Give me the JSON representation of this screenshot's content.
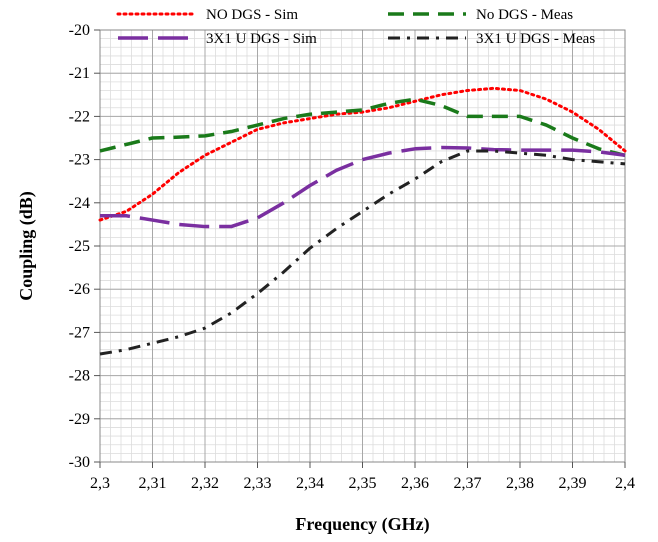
{
  "chart_data": {
    "type": "line",
    "title": "",
    "xlabel": "Frequency (GHz)",
    "ylabel": "Coupling (dB)",
    "xlim": [
      2.3,
      2.4
    ],
    "ylim": [
      -30,
      -20
    ],
    "x_ticks": [
      "2,3",
      "2,31",
      "2,32",
      "2,33",
      "2,34",
      "2,35",
      "2,36",
      "2,37",
      "2,38",
      "2,39",
      "2,4"
    ],
    "y_ticks": [
      "-20",
      "-21",
      "-22",
      "-23",
      "-24",
      "-25",
      "-26",
      "-27",
      "-28",
      "-29",
      "-30"
    ],
    "grid": true,
    "legend_position": "top",
    "series": [
      {
        "name": "NO DGS - Sim",
        "color": "#ff0000",
        "style": "dotted",
        "points": [
          [
            2.3,
            -24.4
          ],
          [
            2.305,
            -24.2
          ],
          [
            2.31,
            -23.8
          ],
          [
            2.315,
            -23.3
          ],
          [
            2.32,
            -22.9
          ],
          [
            2.325,
            -22.6
          ],
          [
            2.33,
            -22.3
          ],
          [
            2.335,
            -22.15
          ],
          [
            2.34,
            -22.05
          ],
          [
            2.345,
            -21.95
          ],
          [
            2.35,
            -21.9
          ],
          [
            2.355,
            -21.8
          ],
          [
            2.36,
            -21.65
          ],
          [
            2.365,
            -21.5
          ],
          [
            2.37,
            -21.4
          ],
          [
            2.375,
            -21.35
          ],
          [
            2.38,
            -21.4
          ],
          [
            2.385,
            -21.6
          ],
          [
            2.39,
            -21.9
          ],
          [
            2.395,
            -22.3
          ],
          [
            2.4,
            -22.8
          ]
        ]
      },
      {
        "name": "No DGS - Meas",
        "color": "#1a7a1a",
        "style": "dashed",
        "points": [
          [
            2.3,
            -22.8
          ],
          [
            2.305,
            -22.65
          ],
          [
            2.31,
            -22.5
          ],
          [
            2.315,
            -22.48
          ],
          [
            2.32,
            -22.45
          ],
          [
            2.325,
            -22.35
          ],
          [
            2.33,
            -22.2
          ],
          [
            2.335,
            -22.05
          ],
          [
            2.34,
            -21.95
          ],
          [
            2.345,
            -21.9
          ],
          [
            2.35,
            -21.85
          ],
          [
            2.355,
            -21.7
          ],
          [
            2.36,
            -21.6
          ],
          [
            2.365,
            -21.75
          ],
          [
            2.37,
            -22.0
          ],
          [
            2.375,
            -22.0
          ],
          [
            2.38,
            -22.0
          ],
          [
            2.385,
            -22.2
          ],
          [
            2.39,
            -22.5
          ],
          [
            2.395,
            -22.75
          ],
          [
            2.4,
            -22.9
          ]
        ]
      },
      {
        "name": "3X1 U DGS - Sim",
        "color": "#7a2fa0",
        "style": "longdash",
        "points": [
          [
            2.3,
            -24.3
          ],
          [
            2.305,
            -24.3
          ],
          [
            2.31,
            -24.4
          ],
          [
            2.315,
            -24.5
          ],
          [
            2.32,
            -24.55
          ],
          [
            2.325,
            -24.55
          ],
          [
            2.33,
            -24.35
          ],
          [
            2.335,
            -24.0
          ],
          [
            2.34,
            -23.6
          ],
          [
            2.345,
            -23.25
          ],
          [
            2.35,
            -23.0
          ],
          [
            2.355,
            -22.85
          ],
          [
            2.36,
            -22.75
          ],
          [
            2.365,
            -22.72
          ],
          [
            2.37,
            -22.73
          ],
          [
            2.375,
            -22.77
          ],
          [
            2.38,
            -22.78
          ],
          [
            2.385,
            -22.78
          ],
          [
            2.39,
            -22.78
          ],
          [
            2.395,
            -22.82
          ],
          [
            2.4,
            -22.9
          ]
        ]
      },
      {
        "name": "3X1 U DGS - Meas",
        "color": "#222222",
        "style": "dashdot",
        "points": [
          [
            2.3,
            -27.5
          ],
          [
            2.305,
            -27.4
          ],
          [
            2.31,
            -27.25
          ],
          [
            2.315,
            -27.1
          ],
          [
            2.32,
            -26.9
          ],
          [
            2.325,
            -26.55
          ],
          [
            2.33,
            -26.1
          ],
          [
            2.335,
            -25.6
          ],
          [
            2.34,
            -25.05
          ],
          [
            2.345,
            -24.6
          ],
          [
            2.35,
            -24.2
          ],
          [
            2.355,
            -23.8
          ],
          [
            2.36,
            -23.45
          ],
          [
            2.365,
            -23.05
          ],
          [
            2.37,
            -22.8
          ],
          [
            2.375,
            -22.8
          ],
          [
            2.38,
            -22.85
          ],
          [
            2.385,
            -22.9
          ],
          [
            2.39,
            -23.0
          ],
          [
            2.395,
            -23.05
          ],
          [
            2.4,
            -23.1
          ]
        ]
      }
    ]
  }
}
